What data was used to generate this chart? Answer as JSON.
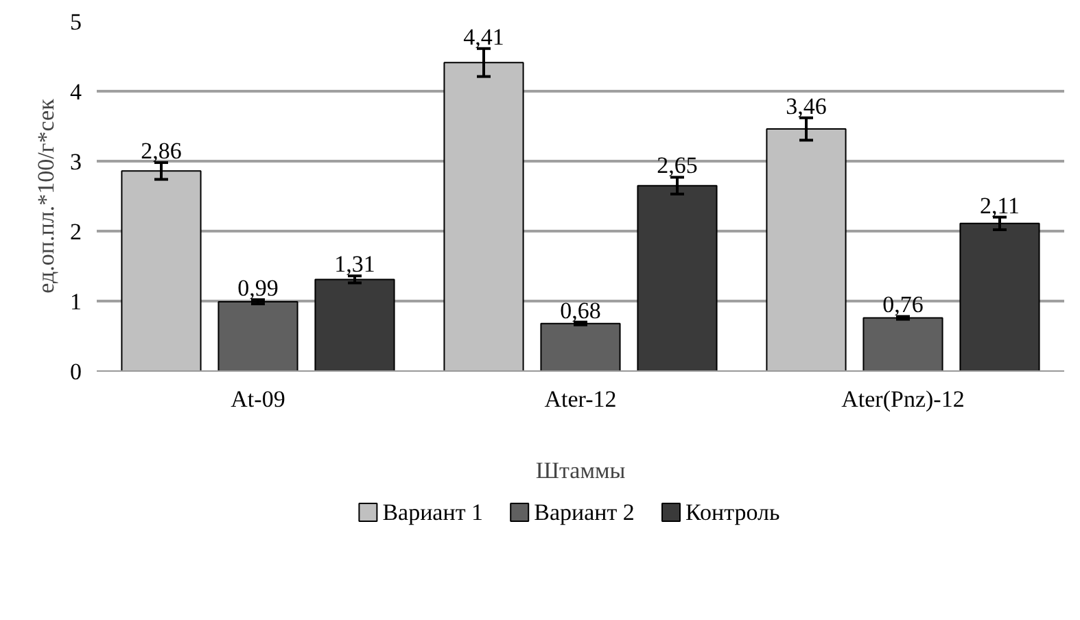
{
  "chart_data": {
    "type": "bar",
    "xlabel": "Штаммы",
    "ylabel": "ед.оп.пл.*100/г*сек",
    "categories": [
      "At-09",
      "Ater-12",
      "Ater(Pnz)-12"
    ],
    "series": [
      {
        "name": "Вариант 1",
        "color": "#c0c0c0",
        "values": [
          2.86,
          4.41,
          3.46
        ],
        "errors": [
          0.12,
          0.2,
          0.16
        ],
        "value_labels": [
          "2,86",
          "4,41",
          "3,46"
        ]
      },
      {
        "name": "Вариант 2",
        "color": "#606060",
        "values": [
          0.99,
          0.68,
          0.76
        ],
        "errors": [
          0.03,
          0.02,
          0.02
        ],
        "value_labels": [
          "0,99",
          "0,68",
          "0,76"
        ]
      },
      {
        "name": "Контроль",
        "color": "#3a3a3a",
        "values": [
          1.31,
          2.65,
          2.11
        ],
        "errors": [
          0.05,
          0.12,
          0.09
        ],
        "value_labels": [
          "1,31",
          "2,65",
          "2,11"
        ]
      }
    ],
    "ylim": [
      0,
      5
    ],
    "yticks": [
      0,
      1,
      2,
      3,
      4,
      5
    ],
    "grid": "y",
    "legend": "bottom"
  }
}
